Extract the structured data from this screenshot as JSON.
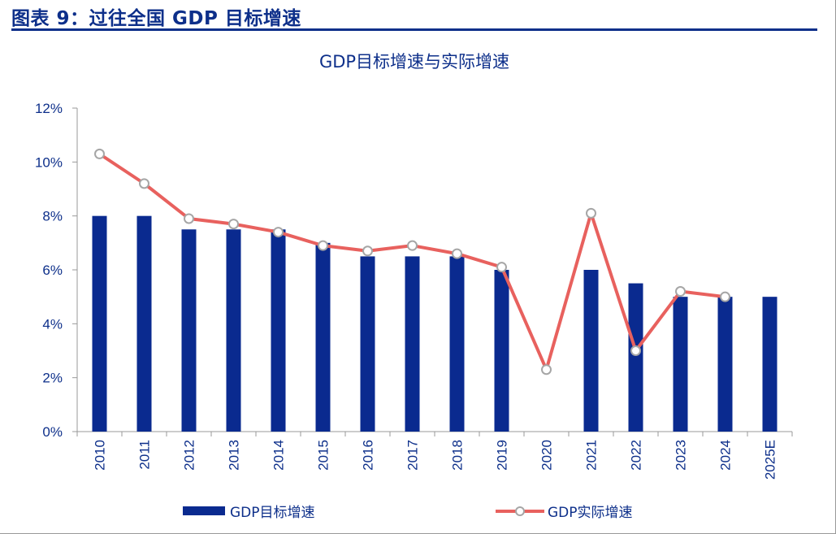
{
  "header": {
    "title": "图表 9：过往全国 GDP 目标增速"
  },
  "colors": {
    "bar": "#0a2a8f",
    "line": "#e8615e",
    "marker_fill": "#ffffff",
    "marker_stroke": "#a6a6a6",
    "text": "#0d2f8a"
  },
  "chart_data": {
    "type": "bar+line",
    "title": "GDP目标增速与实际增速",
    "categories": [
      "2010",
      "2011",
      "2012",
      "2013",
      "2014",
      "2015",
      "2016",
      "2017",
      "2018",
      "2019",
      "2020",
      "2021",
      "2022",
      "2023",
      "2024",
      "2025E"
    ],
    "series": [
      {
        "name": "GDP目标增速",
        "type": "bar",
        "values": [
          8,
          8,
          7.5,
          7.5,
          7.5,
          7,
          6.5,
          6.5,
          6.5,
          6,
          null,
          6,
          5.5,
          5,
          5,
          5
        ]
      },
      {
        "name": "GDP实际增速",
        "type": "line",
        "values": [
          10.3,
          9.2,
          7.9,
          7.7,
          7.4,
          6.9,
          6.7,
          6.9,
          6.6,
          6.1,
          2.3,
          8.1,
          3.0,
          5.2,
          5.0,
          null
        ]
      }
    ],
    "ylim": [
      0,
      12
    ],
    "yticks": [
      0,
      2,
      4,
      6,
      8,
      10,
      12
    ],
    "ytick_labels": [
      "0%",
      "2%",
      "4%",
      "6%",
      "8%",
      "10%",
      "12%"
    ],
    "xlabel": "",
    "ylabel": "",
    "grid": false,
    "legend": "bottom"
  }
}
